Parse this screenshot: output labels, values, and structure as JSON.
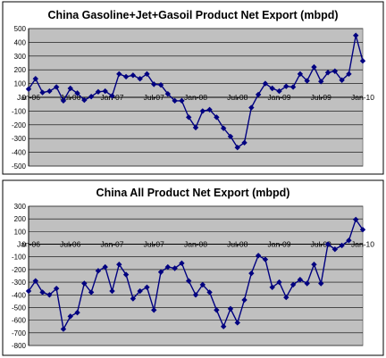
{
  "chart_data": [
    {
      "type": "line",
      "title": "China Gasoline+Jet+Gasoil Product Net Export (mbpd)",
      "ylim": [
        -500,
        500
      ],
      "ytick_step": 100,
      "grid": true,
      "color": "#000080",
      "x_tick_labels": [
        "Jan-06",
        "Jul-06",
        "Jan-07",
        "Jul-07",
        "Jan-08",
        "Jul-08",
        "Jan-09",
        "Jul-09",
        "Jan-10"
      ],
      "x_start": "Jan-06",
      "x_end": "Jan-10",
      "series": [
        {
          "values": [
            60,
            135,
            35,
            45,
            75,
            -25,
            65,
            30,
            -20,
            5,
            40,
            45,
            10,
            170,
            150,
            160,
            135,
            170,
            95,
            90,
            25,
            -25,
            -25,
            -145,
            -220,
            -100,
            -90,
            -145,
            -225,
            -285,
            -365,
            -330,
            -75,
            20,
            100,
            65,
            45,
            80,
            75,
            170,
            120,
            220,
            115,
            180,
            190,
            125,
            170,
            450,
            265
          ]
        }
      ]
    },
    {
      "type": "line",
      "title": "China All Product Net Export (mbpd)",
      "ylim": [
        -800,
        300
      ],
      "ytick_step": 100,
      "grid": true,
      "color": "#000080",
      "x_tick_labels": [
        "Jan-06",
        "Jul-06",
        "Jan-07",
        "Jul-07",
        "Jan-08",
        "Jul-08",
        "Jan-09",
        "Jul-09",
        "Jan-10"
      ],
      "x_start": "Jan-06",
      "x_end": "Jan-10",
      "series": [
        {
          "values": [
            -370,
            -290,
            -380,
            -400,
            -350,
            -670,
            -570,
            -540,
            -310,
            -380,
            -210,
            -180,
            -370,
            -160,
            -240,
            -430,
            -370,
            -340,
            -520,
            -220,
            -180,
            -190,
            -150,
            -290,
            -400,
            -320,
            -380,
            -520,
            -650,
            -510,
            -620,
            -440,
            -230,
            -90,
            -120,
            -340,
            -300,
            -420,
            -320,
            -280,
            -310,
            -160,
            -310,
            0,
            -40,
            -10,
            30,
            195,
            115
          ]
        }
      ]
    }
  ]
}
